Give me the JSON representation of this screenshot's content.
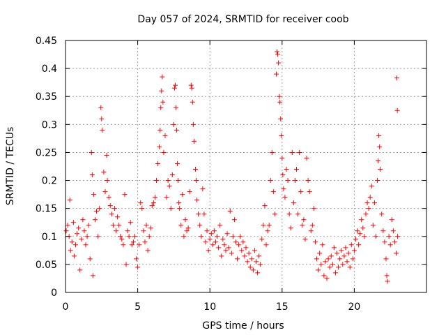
{
  "chart_data": {
    "type": "scatter",
    "title": "Day 057 of 2024, SRMTID for receiver coob",
    "xlabel": "GPS time / hours",
    "ylabel": "SRMTID / TECUs",
    "xlim": [
      0,
      25
    ],
    "ylim": [
      0,
      0.45
    ],
    "x_ticks": [
      "0",
      "5",
      "10",
      "15",
      "20"
    ],
    "x_tick_values": [
      0,
      5,
      10,
      15,
      20
    ],
    "y_ticks": [
      "0",
      "0.05",
      "0.1",
      "0.15",
      "0.2",
      "0.25",
      "0.3",
      "0.35",
      "0.4",
      "0.45"
    ],
    "y_tick_values": [
      0,
      0.05,
      0.1,
      0.15,
      0.2,
      0.25,
      0.3,
      0.35,
      0.4,
      0.45
    ],
    "grid": true,
    "marker": "+",
    "color": "#ff0000",
    "points": [
      [
        0.05,
        0.11
      ],
      [
        0.15,
        0.12
      ],
      [
        0.25,
        0.1
      ],
      [
        0.3,
        0.165
      ],
      [
        0.35,
        0.075
      ],
      [
        0.45,
        0.09
      ],
      [
        0.55,
        0.125
      ],
      [
        0.6,
        0.065
      ],
      [
        0.7,
        0.085
      ],
      [
        0.8,
        0.105
      ],
      [
        0.9,
        0.115
      ],
      [
        1.0,
        0.04
      ],
      [
        1.1,
        0.095
      ],
      [
        1.2,
        0.13
      ],
      [
        1.3,
        0.11
      ],
      [
        1.4,
        0.085
      ],
      [
        1.5,
        0.1
      ],
      [
        1.6,
        0.12
      ],
      [
        1.7,
        0.06
      ],
      [
        1.8,
        0.25
      ],
      [
        1.85,
        0.21
      ],
      [
        1.9,
        0.03
      ],
      [
        1.95,
        0.175
      ],
      [
        2.05,
        0.13
      ],
      [
        2.15,
        0.145
      ],
      [
        2.25,
        0.1
      ],
      [
        2.35,
        0.15
      ],
      [
        2.45,
        0.33
      ],
      [
        2.5,
        0.31
      ],
      [
        2.55,
        0.29
      ],
      [
        2.65,
        0.215
      ],
      [
        2.75,
        0.18
      ],
      [
        2.85,
        0.245
      ],
      [
        2.9,
        0.2
      ],
      [
        3.0,
        0.17
      ],
      [
        3.1,
        0.155
      ],
      [
        3.2,
        0.14
      ],
      [
        3.3,
        0.12
      ],
      [
        3.4,
        0.15
      ],
      [
        3.5,
        0.11
      ],
      [
        3.6,
        0.135
      ],
      [
        3.7,
        0.12
      ],
      [
        3.8,
        0.1
      ],
      [
        3.9,
        0.095
      ],
      [
        4.0,
        0.085
      ],
      [
        4.1,
        0.175
      ],
      [
        4.2,
        0.05
      ],
      [
        4.3,
        0.11
      ],
      [
        4.4,
        0.1
      ],
      [
        4.5,
        0.125
      ],
      [
        4.6,
        0.085
      ],
      [
        4.7,
        0.09
      ],
      [
        4.8,
        0.1
      ],
      [
        4.9,
        0.06
      ],
      [
        5.0,
        0.045
      ],
      [
        5.1,
        0.085
      ],
      [
        5.2,
        0.16
      ],
      [
        5.3,
        0.15
      ],
      [
        5.4,
        0.11
      ],
      [
        5.5,
        0.09
      ],
      [
        5.6,
        0.12
      ],
      [
        5.7,
        0.075
      ],
      [
        5.8,
        0.1
      ],
      [
        5.9,
        0.115
      ],
      [
        6.0,
        0.155
      ],
      [
        6.1,
        0.16
      ],
      [
        6.2,
        0.17
      ],
      [
        6.3,
        0.2
      ],
      [
        6.4,
        0.23
      ],
      [
        6.5,
        0.26
      ],
      [
        6.55,
        0.29
      ],
      [
        6.6,
        0.33
      ],
      [
        6.65,
        0.36
      ],
      [
        6.7,
        0.385
      ],
      [
        6.75,
        0.34
      ],
      [
        6.8,
        0.25
      ],
      [
        6.9,
        0.28
      ],
      [
        7.0,
        0.17
      ],
      [
        7.1,
        0.2
      ],
      [
        7.2,
        0.19
      ],
      [
        7.3,
        0.15
      ],
      [
        7.4,
        0.21
      ],
      [
        7.5,
        0.3
      ],
      [
        7.55,
        0.365
      ],
      [
        7.6,
        0.37
      ],
      [
        7.65,
        0.33
      ],
      [
        7.7,
        0.29
      ],
      [
        7.75,
        0.23
      ],
      [
        7.8,
        0.2
      ],
      [
        7.85,
        0.16
      ],
      [
        7.9,
        0.15
      ],
      [
        8.0,
        0.12
      ],
      [
        8.1,
        0.175
      ],
      [
        8.2,
        0.1
      ],
      [
        8.3,
        0.13
      ],
      [
        8.4,
        0.11
      ],
      [
        8.5,
        0.115
      ],
      [
        8.6,
        0.18
      ],
      [
        8.7,
        0.37
      ],
      [
        8.75,
        0.365
      ],
      [
        8.8,
        0.34
      ],
      [
        8.85,
        0.3
      ],
      [
        8.9,
        0.27
      ],
      [
        9.0,
        0.22
      ],
      [
        9.05,
        0.2
      ],
      [
        9.1,
        0.165
      ],
      [
        9.2,
        0.14
      ],
      [
        9.3,
        0.12
      ],
      [
        9.4,
        0.1
      ],
      [
        9.5,
        0.185
      ],
      [
        9.6,
        0.14
      ],
      [
        9.7,
        0.09
      ],
      [
        9.8,
        0.11
      ],
      [
        9.9,
        0.075
      ],
      [
        10.0,
        0.095
      ],
      [
        10.1,
        0.105
      ],
      [
        10.2,
        0.085
      ],
      [
        10.3,
        0.11
      ],
      [
        10.4,
        0.09
      ],
      [
        10.5,
        0.1
      ],
      [
        10.6,
        0.08
      ],
      [
        10.7,
        0.12
      ],
      [
        10.8,
        0.065
      ],
      [
        10.9,
        0.095
      ],
      [
        11.0,
        0.085
      ],
      [
        11.1,
        0.075
      ],
      [
        11.2,
        0.105
      ],
      [
        11.3,
        0.08
      ],
      [
        11.4,
        0.145
      ],
      [
        11.5,
        0.07
      ],
      [
        11.6,
        0.1
      ],
      [
        11.7,
        0.13
      ],
      [
        11.8,
        0.09
      ],
      [
        11.9,
        0.06
      ],
      [
        12.0,
        0.085
      ],
      [
        12.1,
        0.1
      ],
      [
        12.2,
        0.075
      ],
      [
        12.3,
        0.09
      ],
      [
        12.4,
        0.065
      ],
      [
        12.5,
        0.08
      ],
      [
        12.6,
        0.055
      ],
      [
        12.7,
        0.07
      ],
      [
        12.8,
        0.045
      ],
      [
        12.9,
        0.06
      ],
      [
        13.0,
        0.04
      ],
      [
        13.1,
        0.075
      ],
      [
        13.2,
        0.055
      ],
      [
        13.3,
        0.035
      ],
      [
        13.4,
        0.065
      ],
      [
        13.5,
        0.05
      ],
      [
        13.6,
        0.095
      ],
      [
        13.7,
        0.12
      ],
      [
        13.8,
        0.155
      ],
      [
        13.9,
        0.085
      ],
      [
        14.0,
        0.11
      ],
      [
        14.1,
        0.12
      ],
      [
        14.2,
        0.2
      ],
      [
        14.3,
        0.25
      ],
      [
        14.4,
        0.18
      ],
      [
        14.5,
        0.14
      ],
      [
        14.6,
        0.39
      ],
      [
        14.65,
        0.43
      ],
      [
        14.7,
        0.425
      ],
      [
        14.75,
        0.41
      ],
      [
        14.8,
        0.35
      ],
      [
        14.85,
        0.34
      ],
      [
        14.9,
        0.31
      ],
      [
        14.95,
        0.28
      ],
      [
        15.0,
        0.24
      ],
      [
        15.05,
        0.21
      ],
      [
        15.1,
        0.185
      ],
      [
        15.2,
        0.17
      ],
      [
        15.3,
        0.22
      ],
      [
        15.4,
        0.2
      ],
      [
        15.5,
        0.14
      ],
      [
        15.6,
        0.115
      ],
      [
        15.7,
        0.25
      ],
      [
        15.8,
        0.16
      ],
      [
        15.9,
        0.2
      ],
      [
        16.0,
        0.22
      ],
      [
        16.1,
        0.14
      ],
      [
        16.2,
        0.25
      ],
      [
        16.3,
        0.18
      ],
      [
        16.4,
        0.12
      ],
      [
        16.5,
        0.13
      ],
      [
        16.6,
        0.095
      ],
      [
        16.7,
        0.24
      ],
      [
        16.8,
        0.2
      ],
      [
        16.9,
        0.18
      ],
      [
        17.0,
        0.11
      ],
      [
        17.1,
        0.12
      ],
      [
        17.2,
        0.15
      ],
      [
        17.3,
        0.09
      ],
      [
        17.4,
        0.06
      ],
      [
        17.5,
        0.04
      ],
      [
        17.6,
        0.07
      ],
      [
        17.7,
        0.05
      ],
      [
        17.8,
        0.085
      ],
      [
        17.9,
        0.03
      ],
      [
        18.0,
        0.055
      ],
      [
        18.1,
        0.025
      ],
      [
        18.2,
        0.06
      ],
      [
        18.3,
        0.045
      ],
      [
        18.4,
        0.065
      ],
      [
        18.5,
        0.05
      ],
      [
        18.6,
        0.08
      ],
      [
        18.7,
        0.035
      ],
      [
        18.8,
        0.07
      ],
      [
        18.9,
        0.045
      ],
      [
        19.0,
        0.06
      ],
      [
        19.1,
        0.075
      ],
      [
        19.2,
        0.05
      ],
      [
        19.3,
        0.065
      ],
      [
        19.4,
        0.08
      ],
      [
        19.5,
        0.055
      ],
      [
        19.6,
        0.07
      ],
      [
        19.7,
        0.045
      ],
      [
        19.8,
        0.085
      ],
      [
        19.9,
        0.06
      ],
      [
        20.0,
        0.075
      ],
      [
        20.1,
        0.095
      ],
      [
        20.2,
        0.11
      ],
      [
        20.3,
        0.085
      ],
      [
        20.4,
        0.105
      ],
      [
        20.5,
        0.13
      ],
      [
        20.6,
        0.115
      ],
      [
        20.7,
        0.1
      ],
      [
        20.8,
        0.14
      ],
      [
        20.9,
        0.16
      ],
      [
        21.0,
        0.15
      ],
      [
        21.1,
        0.17
      ],
      [
        21.2,
        0.19
      ],
      [
        21.3,
        0.12
      ],
      [
        21.4,
        0.16
      ],
      [
        21.5,
        0.1
      ],
      [
        21.6,
        0.2
      ],
      [
        21.65,
        0.235
      ],
      [
        21.7,
        0.28
      ],
      [
        21.75,
        0.26
      ],
      [
        21.8,
        0.22
      ],
      [
        21.9,
        0.14
      ],
      [
        22.0,
        0.11
      ],
      [
        22.1,
        0.09
      ],
      [
        22.2,
        0.06
      ],
      [
        22.25,
        0.03
      ],
      [
        22.3,
        0.02
      ],
      [
        22.4,
        0.1
      ],
      [
        22.5,
        0.085
      ],
      [
        22.6,
        0.13
      ],
      [
        22.7,
        0.11
      ],
      [
        22.8,
        0.09
      ],
      [
        22.9,
        0.07
      ],
      [
        23.0,
        0.1
      ],
      [
        22.95,
        0.383
      ],
      [
        22.98,
        0.325
      ]
    ]
  }
}
